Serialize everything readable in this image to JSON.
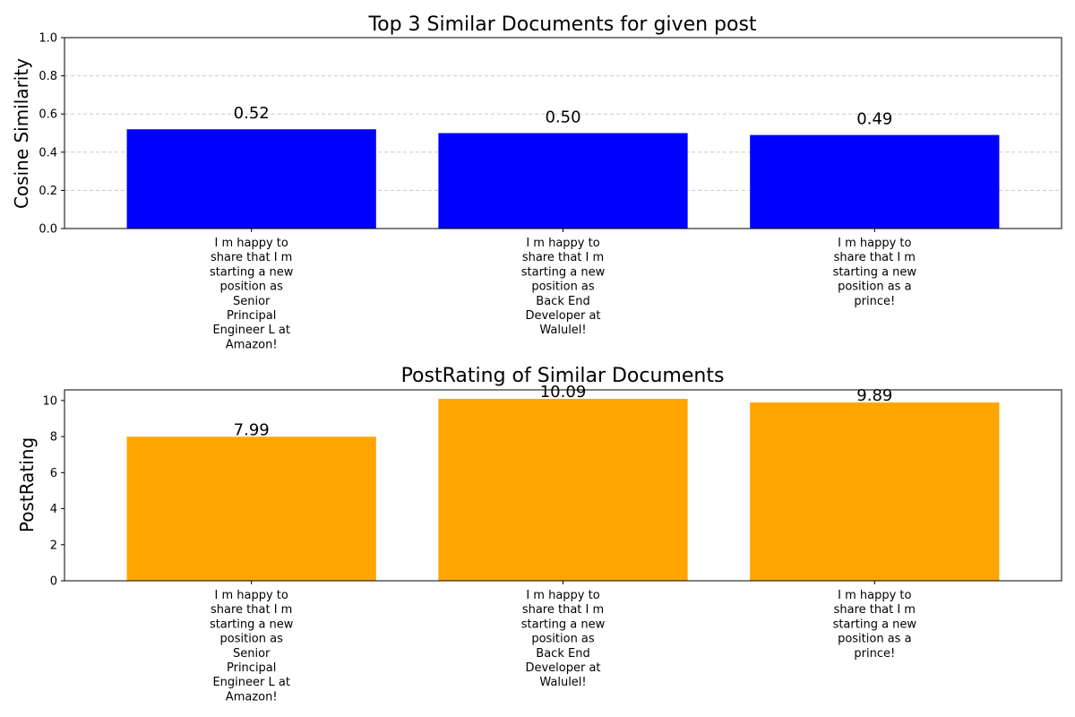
{
  "chart_data": [
    {
      "type": "bar",
      "title": "Top 3 Similar Documents for given post",
      "xlabel": "",
      "ylabel": "Cosine Similarity",
      "ylim": [
        0,
        1.0
      ],
      "yticks": [
        "0.0",
        "0.2",
        "0.4",
        "0.6",
        "0.8",
        "1.0"
      ],
      "grid": "y-dashed",
      "categories": [
        [
          "I m happy to",
          "share that I m",
          "starting a new",
          "position as",
          "Senior",
          "Principal",
          "Engineer L at",
          "Amazon!"
        ],
        [
          "I m happy to",
          "share that I m",
          "starting a new",
          "position as",
          "Back End",
          "Developer at",
          "Walulel!"
        ],
        [
          "I m happy to",
          "share that I m",
          "starting a new",
          "position as a",
          "prince!"
        ]
      ],
      "values": [
        0.52,
        0.5,
        0.49
      ],
      "value_labels": [
        "0.52",
        "0.50",
        "0.49"
      ],
      "color": "#0000ff"
    },
    {
      "type": "bar",
      "title": "PostRating of Similar Documents",
      "xlabel": "",
      "ylabel": "PostRating",
      "ylim": [
        0,
        10.59
      ],
      "yticks": [
        "0",
        "2",
        "4",
        "6",
        "8",
        "10"
      ],
      "grid": "none",
      "categories": [
        [
          "I m happy to",
          "share that I m",
          "starting a new",
          "position as",
          "Senior",
          "Principal",
          "Engineer L at",
          "Amazon!"
        ],
        [
          "I m happy to",
          "share that I m",
          "starting a new",
          "position as",
          "Back End",
          "Developer at",
          "Walulel!"
        ],
        [
          "I m happy to",
          "share that I m",
          "starting a new",
          "position as a",
          "prince!"
        ]
      ],
      "values": [
        7.99,
        10.09,
        9.89
      ],
      "value_labels": [
        "7.99",
        "10.09",
        "9.89"
      ],
      "color": "#ffa500"
    }
  ]
}
